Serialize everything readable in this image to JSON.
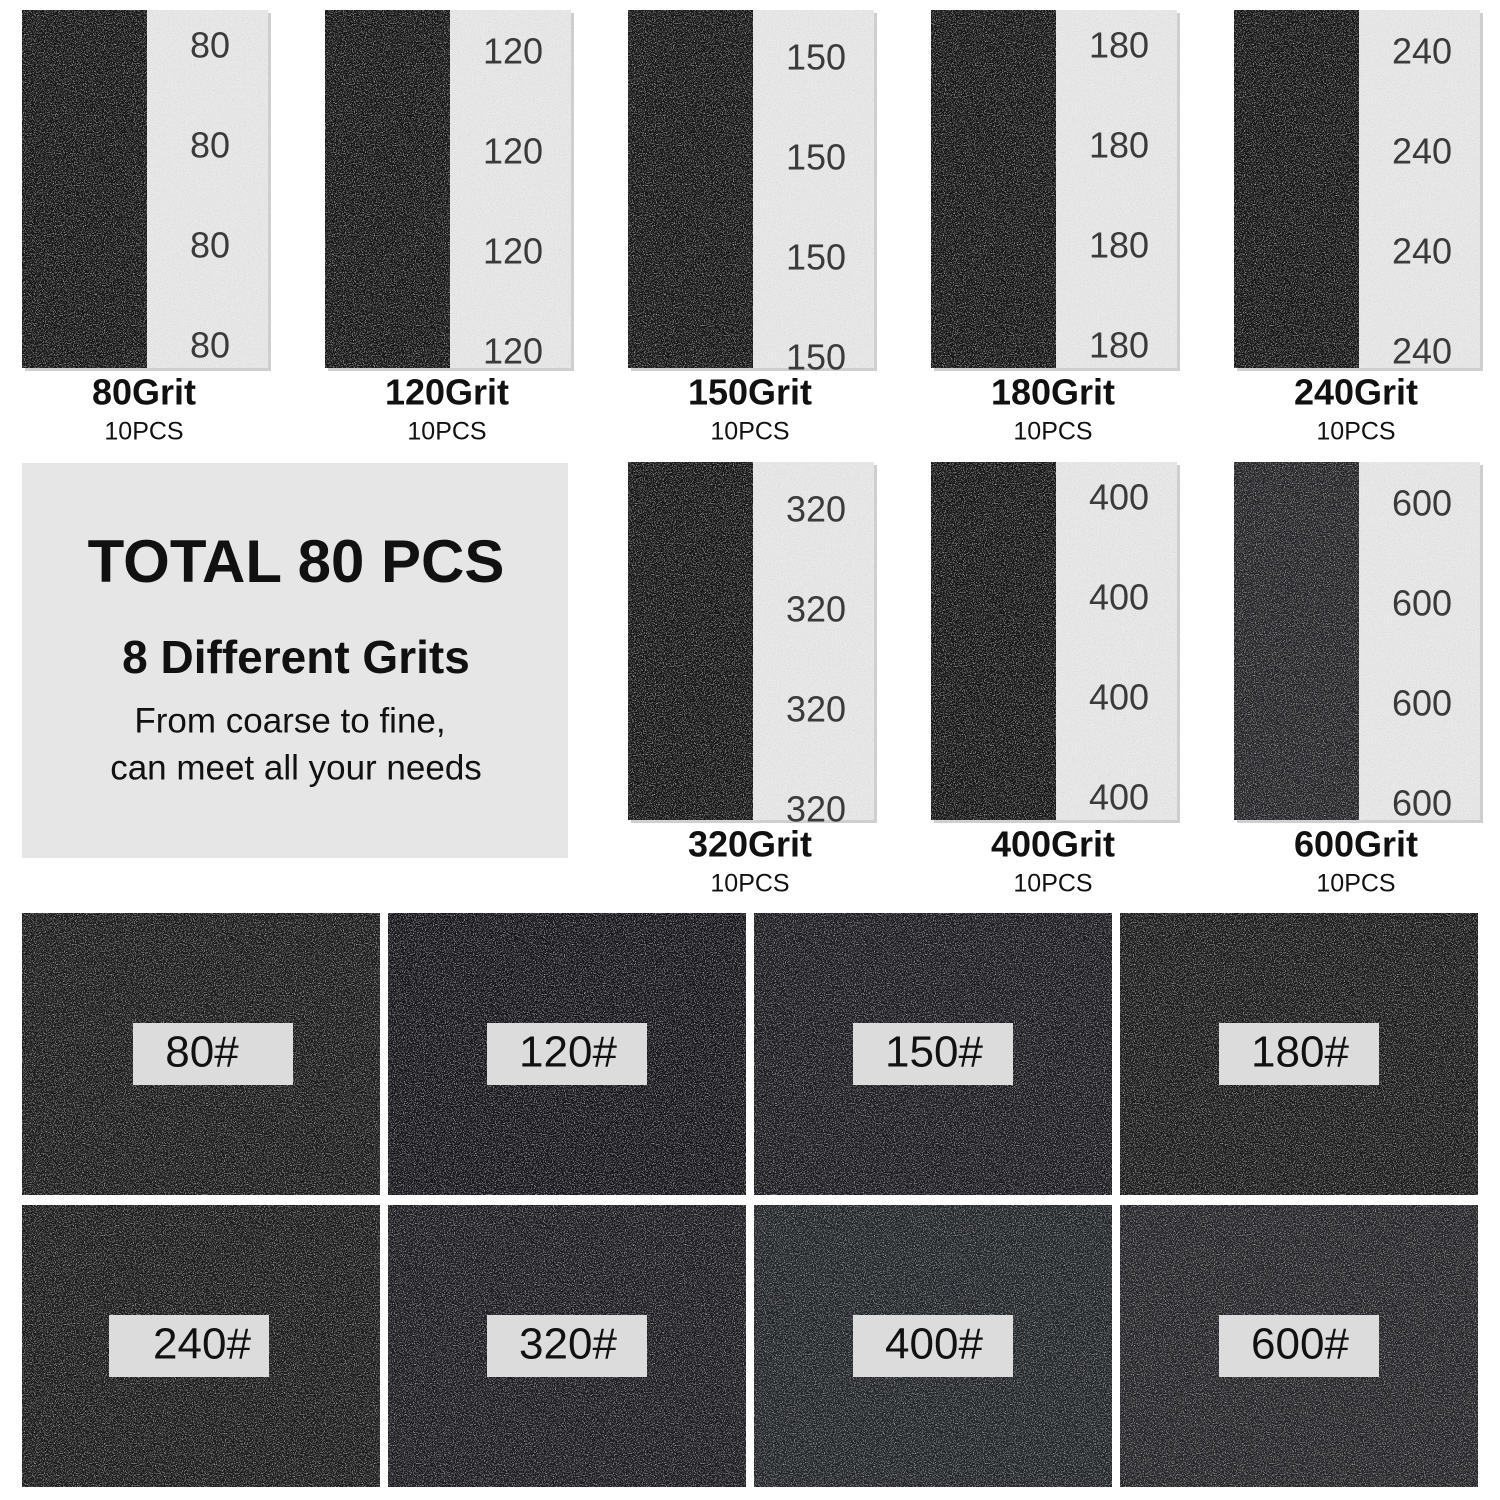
{
  "sheets": [
    {
      "label": "80Grit",
      "count": "10PCS",
      "print": "80"
    },
    {
      "label": "120Grit",
      "count": "10PCS",
      "print": "120"
    },
    {
      "label": "150Grit",
      "count": "10PCS",
      "print": "150"
    },
    {
      "label": "180Grit",
      "count": "10PCS",
      "print": "180"
    },
    {
      "label": "240Grit",
      "count": "10PCS",
      "print": "240"
    },
    {
      "label": "320Grit",
      "count": "10PCS",
      "print": "320"
    },
    {
      "label": "400Grit",
      "count": "10PCS",
      "print": "400"
    },
    {
      "label": "600Grit",
      "count": "10PCS",
      "print": "600"
    }
  ],
  "info": {
    "title": "TOTAL 80 PCS",
    "subtitle": "8 Different Grits",
    "line1": "From coarse to fine,",
    "line2": "can meet all your needs"
  },
  "closeups": [
    "80#",
    "120#",
    "150#",
    "180#",
    "240#",
    "320#",
    "400#",
    "600#"
  ]
}
